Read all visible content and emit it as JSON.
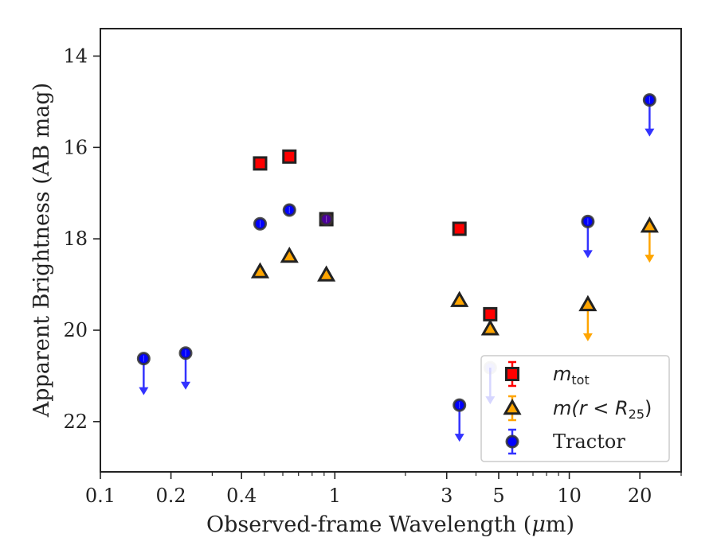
{
  "chart_data": {
    "type": "scatter",
    "xlabel_pre": "Observed-frame Wavelength (",
    "xlabel_mu": "μ",
    "xlabel_post": "m)",
    "ylabel": "Apparent Brightness (AB mag)",
    "x_scale": "log",
    "xlim": [
      0.1,
      30
    ],
    "ylim": [
      23.1,
      13.4
    ],
    "y_inverted": true,
    "x_ticks": [
      {
        "value": 0.1,
        "label": "0.1"
      },
      {
        "value": 0.2,
        "label": "0.2"
      },
      {
        "value": 0.4,
        "label": "0.4"
      },
      {
        "value": 1,
        "label": "1"
      },
      {
        "value": 3,
        "label": "3"
      },
      {
        "value": 5,
        "label": "5"
      },
      {
        "value": 10,
        "label": "10"
      },
      {
        "value": 20,
        "label": "20"
      }
    ],
    "y_ticks": [
      {
        "value": 14,
        "label": "14"
      },
      {
        "value": 16,
        "label": "16"
      },
      {
        "value": 18,
        "label": "18"
      },
      {
        "value": 20,
        "label": "20"
      },
      {
        "value": 22,
        "label": "22"
      }
    ],
    "grid": false,
    "legend_position": "lower-right",
    "series": [
      {
        "key": "mtot",
        "legend_main": "m",
        "legend_sub": "tot",
        "marker": "square",
        "color": "#ff0000",
        "edge": "#222222",
        "points": [
          {
            "x": 0.48,
            "y": 16.35
          },
          {
            "x": 0.64,
            "y": 16.2
          },
          {
            "x": 0.92,
            "y": 17.57
          },
          {
            "x": 3.4,
            "y": 17.78
          },
          {
            "x": 4.6,
            "y": 19.65
          }
        ]
      },
      {
        "key": "mr25",
        "legend_main": "m(r < R",
        "legend_sub": "25",
        "legend_end": ")",
        "marker": "triangle",
        "color": "#ffa500",
        "edge": "#222222",
        "points": [
          {
            "x": 0.48,
            "y": 18.72
          },
          {
            "x": 0.64,
            "y": 18.38
          },
          {
            "x": 0.92,
            "y": 18.79
          },
          {
            "x": 3.4,
            "y": 19.35
          },
          {
            "x": 4.6,
            "y": 19.97
          },
          {
            "x": 12,
            "y": 19.44,
            "upper_limit": true
          },
          {
            "x": 22,
            "y": 17.72,
            "upper_limit": true
          }
        ]
      },
      {
        "key": "tractor",
        "legend_main": "Tractor",
        "marker": "circle",
        "color": "#0000ff",
        "edge": "#333333",
        "points": [
          {
            "x": 0.153,
            "y": 20.62,
            "upper_limit": true
          },
          {
            "x": 0.231,
            "y": 20.5,
            "upper_limit": true
          },
          {
            "x": 0.48,
            "y": 17.67
          },
          {
            "x": 0.64,
            "y": 17.37
          },
          {
            "x": 0.92,
            "y": 17.57
          },
          {
            "x": 3.4,
            "y": 21.64,
            "upper_limit": true
          },
          {
            "x": 4.6,
            "y": 20.82,
            "upper_limit": true
          },
          {
            "x": 12,
            "y": 17.62,
            "upper_limit": true
          },
          {
            "x": 22,
            "y": 14.96,
            "upper_limit": true
          }
        ]
      }
    ]
  }
}
